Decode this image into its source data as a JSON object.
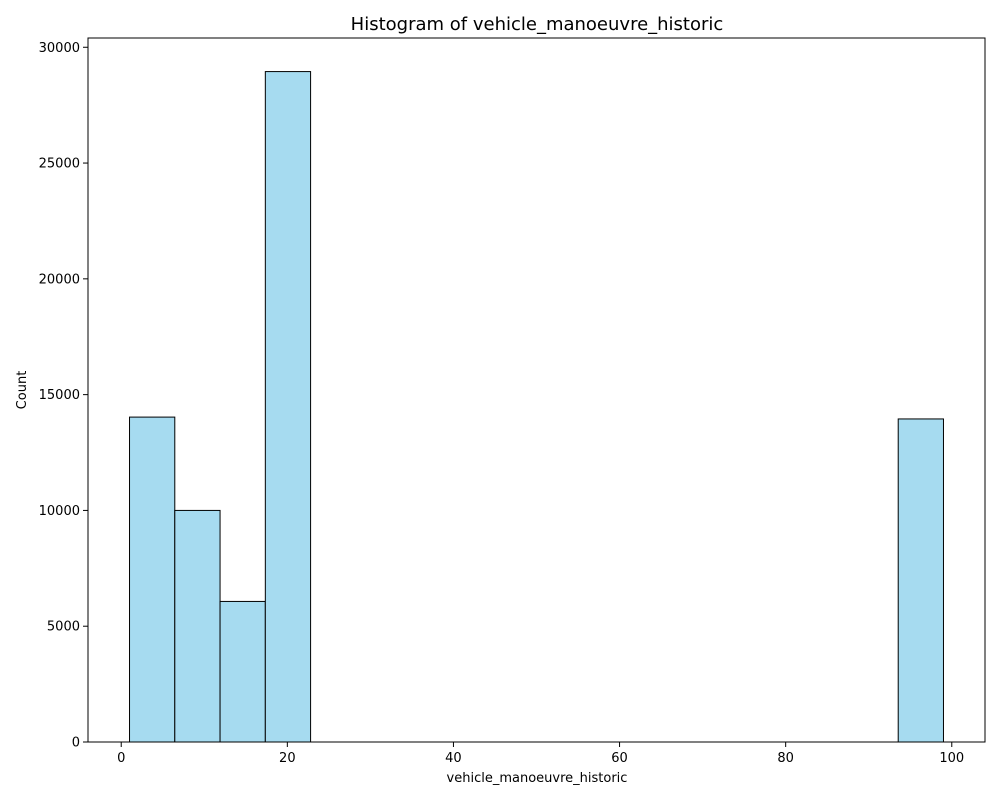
{
  "chart_data": {
    "type": "bar",
    "title": "Histogram of vehicle_manoeuvre_historic",
    "xlabel": "vehicle_manoeuvre_historic",
    "ylabel": "Count",
    "xlim": [
      -4,
      104
    ],
    "ylim": [
      0,
      30400
    ],
    "xticks": [
      0,
      20,
      40,
      60,
      80,
      100
    ],
    "yticks": [
      0,
      5000,
      10000,
      15000,
      20000,
      25000,
      30000
    ],
    "bins": [
      {
        "x0": 1.0,
        "x1": 6.45,
        "count": 14030
      },
      {
        "x0": 6.45,
        "x1": 11.9,
        "count": 10000
      },
      {
        "x0": 11.9,
        "x1": 17.35,
        "count": 6070
      },
      {
        "x0": 17.35,
        "x1": 22.8,
        "count": 28950
      },
      {
        "x0": 93.55,
        "x1": 99.0,
        "count": 13950
      }
    ],
    "bar_color": "#a6dbf0",
    "edge_color": "#000000",
    "grid": false,
    "legend": "none"
  }
}
